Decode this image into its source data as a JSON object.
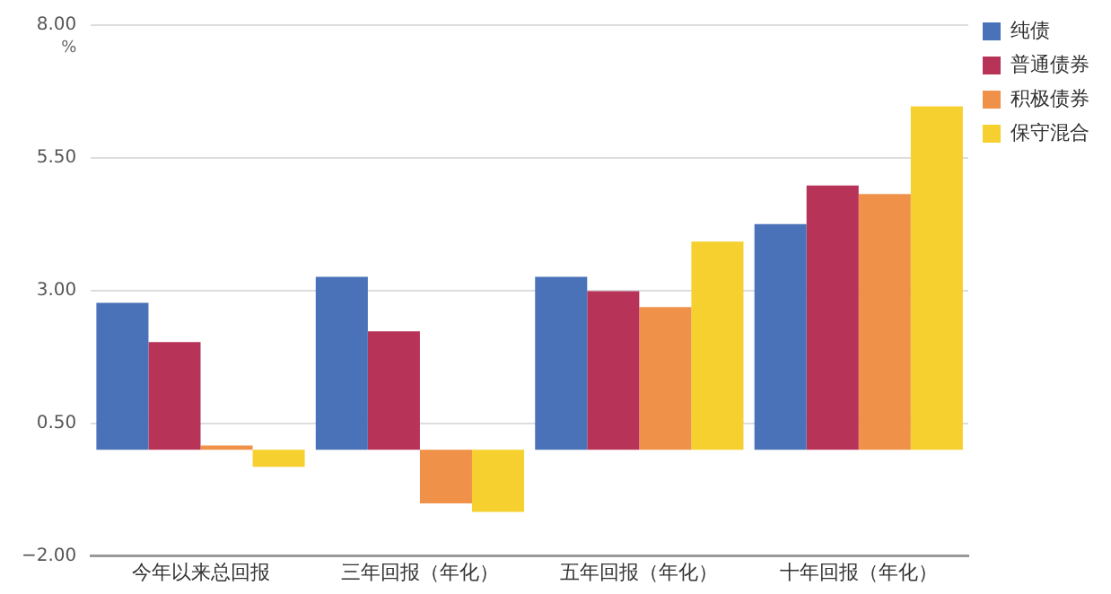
{
  "chart_data": {
    "type": "bar",
    "ylabel": "%",
    "categories": [
      "今年以来总回报",
      "三年回报（年化）",
      "五年回报（年化）",
      "十年回报（年化）"
    ],
    "series": [
      {
        "name": "纯债",
        "color": "#4a72b8",
        "values": [
          2.77,
          3.26,
          3.26,
          4.25
        ]
      },
      {
        "name": "普通债券",
        "color": "#b83358",
        "values": [
          2.03,
          2.23,
          2.99,
          4.98
        ]
      },
      {
        "name": "积极债券",
        "color": "#f0914a",
        "values": [
          0.08,
          -1.01,
          2.69,
          4.82
        ]
      },
      {
        "name": "保守混合",
        "color": "#f5d02e",
        "values": [
          -0.32,
          -1.17,
          3.92,
          6.47
        ]
      }
    ],
    "ylim": [
      -2,
      8
    ],
    "yticks": [
      {
        "value": -2,
        "label": "−2.00"
      },
      {
        "value": 0.5,
        "label": "0.50"
      },
      {
        "value": 3,
        "label": "3.00"
      },
      {
        "value": 5.5,
        "label": "5.50"
      },
      {
        "value": 8,
        "label": "8.00"
      }
    ],
    "grid": "y",
    "legend": "top right"
  }
}
